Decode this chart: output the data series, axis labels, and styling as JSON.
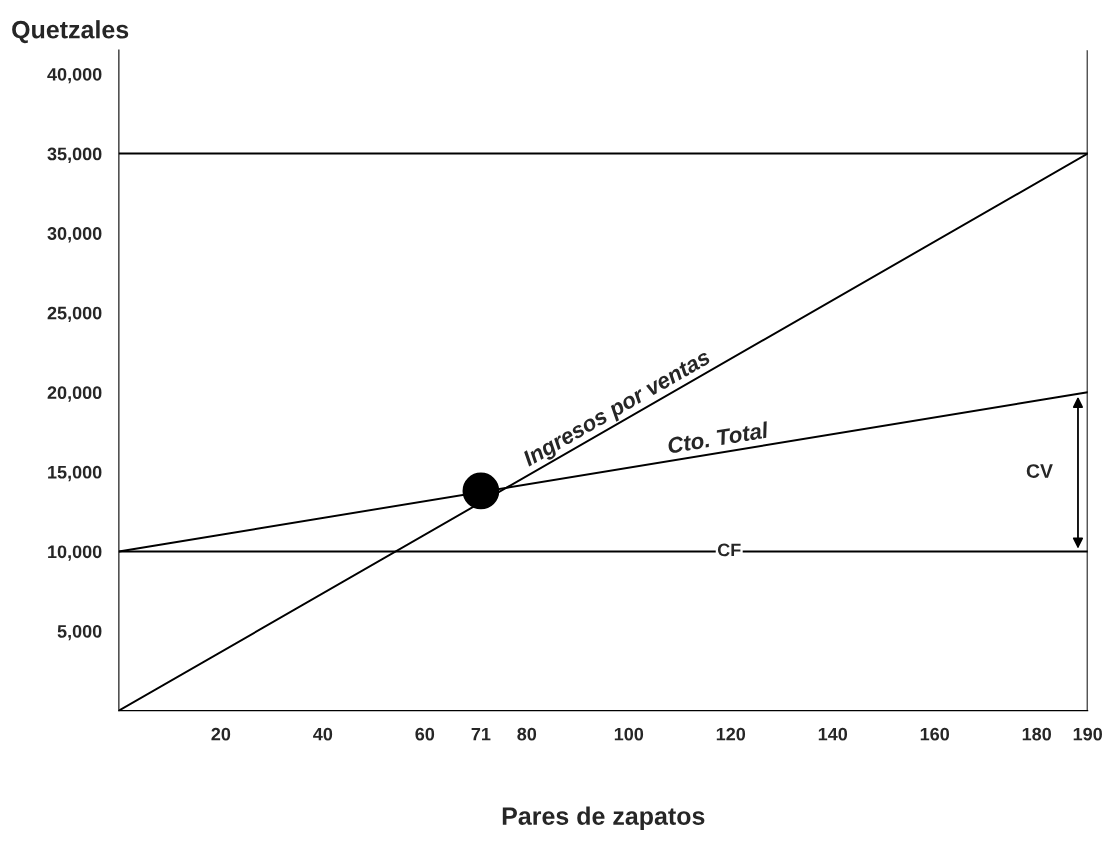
{
  "chart_data": {
    "type": "line",
    "xlabel": "Pares de zapatos",
    "ylabel": "Quetzales",
    "series": [
      {
        "name": "Ingresos por ventas",
        "color": "#000000",
        "x": [
          0,
          190
        ],
        "values": [
          0,
          35000
        ]
      },
      {
        "name": "Cto. Total",
        "color": "#000000",
        "x": [
          0,
          190
        ],
        "values": [
          10000,
          20000
        ]
      },
      {
        "name": "CF",
        "color": "#000000",
        "x": [
          0,
          190
        ],
        "values": [
          10000,
          10000
        ]
      },
      {
        "type": "scatter",
        "marker": "circle",
        "color": "#000000",
        "x": [
          71
        ],
        "values": [
          13800
        ]
      }
    ],
    "annotations": [
      "CV"
    ],
    "ref_lines": [
      {
        "axis": "y",
        "value": 35000
      },
      {
        "axis": "x",
        "value": 190
      }
    ],
    "xlim": [
      0,
      190
    ],
    "ylim": [
      0,
      41500
    ],
    "xticks": [
      20,
      40,
      60,
      71,
      80,
      100,
      120,
      140,
      160,
      180,
      190
    ],
    "yticks": [
      {
        "value": 5000,
        "label": "5,000"
      },
      {
        "value": 10000,
        "label": "10,000"
      },
      {
        "value": 15000,
        "label": "15,000"
      },
      {
        "value": 20000,
        "label": "20,000"
      },
      {
        "value": 25000,
        "label": "25,000"
      },
      {
        "value": 30000,
        "label": "30,000"
      },
      {
        "value": 35000,
        "label": "35,000"
      },
      {
        "value": 40000,
        "label": "40,000"
      }
    ],
    "grid": false,
    "legend": false,
    "marker": "none",
    "line_style": "solid"
  }
}
